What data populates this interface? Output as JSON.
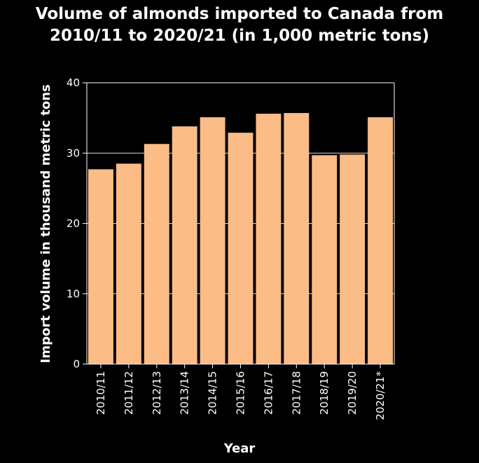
{
  "chart_data": {
    "type": "bar",
    "title_lines": [
      "Volume of almonds imported to Canada from",
      "2010/11 to 2020/21 (in 1,000 metric tons)"
    ],
    "xlabel": "Year",
    "ylabel": "Import volume in thousand metric tons",
    "categories": [
      "2010/11",
      "2011/12",
      "2012/13",
      "2013/14",
      "2014/15",
      "2015/16",
      "2016/17",
      "2017/18",
      "2018/19",
      "2019/20",
      "2020/21*"
    ],
    "values": [
      27.7,
      28.5,
      31.3,
      33.8,
      35.1,
      32.9,
      35.6,
      35.7,
      29.7,
      29.8,
      35.1
    ],
    "ylim": [
      0,
      40
    ],
    "yticks": [
      0,
      10,
      20,
      30,
      40
    ],
    "grid": true,
    "colors": {
      "background": "#000000",
      "plot_background": "#000000",
      "bar": "#fbbc85",
      "grid": "#ffffff",
      "text": "#ffffff"
    }
  }
}
